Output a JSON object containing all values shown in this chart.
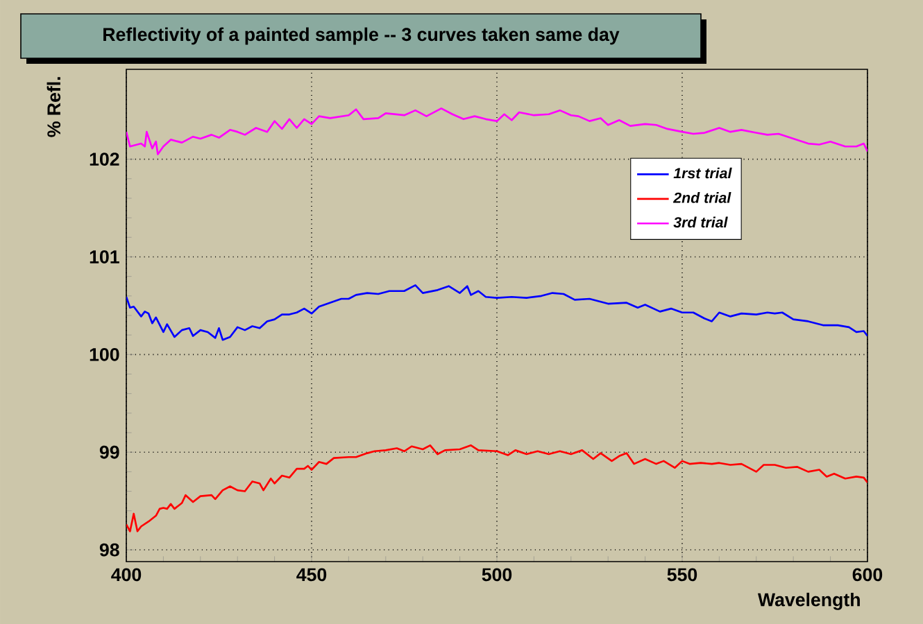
{
  "chart_data": {
    "type": "line",
    "title": "Reflectivity of a painted sample -- 3 curves taken same day",
    "xlabel": "Wavelength",
    "ylabel": "% Refl.",
    "xlim": [
      400,
      600
    ],
    "ylim": [
      97.88,
      102.92
    ],
    "xticks": [
      400,
      450,
      500,
      550,
      600
    ],
    "yticks": [
      98,
      99,
      100,
      101,
      102
    ],
    "grid": true,
    "legend": "top right",
    "marker": "none",
    "line_style": "solid",
    "series": [
      {
        "name": "*1rst trial*",
        "color": "#0000ff",
        "x": [
          400,
          401,
          402,
          404,
          405,
          406,
          407,
          408,
          410,
          411,
          413,
          415,
          417,
          418,
          420,
          422,
          424,
          425,
          426,
          428,
          430,
          432,
          434,
          436,
          438,
          440,
          442,
          444,
          446,
          448,
          450,
          452,
          455,
          458,
          460,
          462,
          465,
          468,
          471,
          475,
          478,
          480,
          484,
          487,
          490,
          492,
          493,
          495,
          497,
          500,
          504,
          508,
          512,
          515,
          518,
          521,
          525,
          530,
          535,
          538,
          540,
          544,
          547,
          550,
          553,
          556,
          558,
          560,
          563,
          566,
          570,
          573,
          575,
          577,
          580,
          584,
          588,
          592,
          595,
          597,
          599,
          600
        ],
        "values": [
          100.59,
          100.48,
          100.49,
          100.39,
          100.44,
          100.42,
          100.32,
          100.38,
          100.23,
          100.31,
          100.18,
          100.25,
          100.27,
          100.19,
          100.25,
          100.23,
          100.17,
          100.27,
          100.15,
          100.18,
          100.28,
          100.25,
          100.29,
          100.27,
          100.34,
          100.36,
          100.41,
          100.41,
          100.43,
          100.47,
          100.42,
          100.49,
          100.53,
          100.57,
          100.57,
          100.61,
          100.63,
          100.62,
          100.65,
          100.65,
          100.71,
          100.63,
          100.66,
          100.7,
          100.63,
          100.7,
          100.61,
          100.65,
          100.59,
          100.58,
          100.59,
          100.58,
          100.6,
          100.63,
          100.62,
          100.56,
          100.57,
          100.52,
          100.53,
          100.48,
          100.51,
          100.44,
          100.47,
          100.43,
          100.43,
          100.37,
          100.34,
          100.43,
          100.39,
          100.42,
          100.41,
          100.43,
          100.42,
          100.43,
          100.36,
          100.34,
          100.3,
          100.3,
          100.28,
          100.23,
          100.24,
          100.19
        ]
      },
      {
        "name": "*2nd trial*",
        "color": "#ff0000",
        "x": [
          400,
          401,
          402,
          403,
          404,
          406,
          408,
          409,
          410,
          411,
          412,
          413,
          415,
          416,
          418,
          420,
          423,
          424,
          426,
          428,
          430,
          432,
          434,
          436,
          437,
          439,
          440,
          442,
          444,
          446,
          448,
          449,
          450,
          452,
          454,
          456,
          460,
          462,
          465,
          467,
          470,
          473,
          475,
          477,
          480,
          482,
          484,
          486,
          490,
          493,
          495,
          500,
          503,
          505,
          508,
          511,
          514,
          517,
          520,
          523,
          526,
          528,
          531,
          533,
          535,
          537,
          540,
          543,
          545,
          548,
          550,
          552,
          555,
          558,
          560,
          563,
          566,
          570,
          572,
          575,
          578,
          581,
          584,
          587,
          589,
          591,
          594,
          597,
          599,
          600
        ],
        "values": [
          98.26,
          98.19,
          98.37,
          98.19,
          98.24,
          98.29,
          98.35,
          98.42,
          98.43,
          98.42,
          98.47,
          98.42,
          98.48,
          98.56,
          98.49,
          98.55,
          98.56,
          98.52,
          98.61,
          98.65,
          98.61,
          98.6,
          98.7,
          98.68,
          98.61,
          98.73,
          98.68,
          98.76,
          98.74,
          98.83,
          98.83,
          98.86,
          98.82,
          98.9,
          98.88,
          98.94,
          98.95,
          98.95,
          98.99,
          99.01,
          99.02,
          99.04,
          99.01,
          99.06,
          99.03,
          99.07,
          98.98,
          99.02,
          99.03,
          99.07,
          99.02,
          99.01,
          98.97,
          99.02,
          98.98,
          99.01,
          98.98,
          99.01,
          98.98,
          99.02,
          98.93,
          98.99,
          98.91,
          98.96,
          98.99,
          98.88,
          98.93,
          98.88,
          98.91,
          98.84,
          98.91,
          98.88,
          98.89,
          98.88,
          98.89,
          98.87,
          98.88,
          98.8,
          98.87,
          98.87,
          98.84,
          98.85,
          98.8,
          98.82,
          98.75,
          98.78,
          98.73,
          98.75,
          98.74,
          98.69
        ]
      },
      {
        "name": "*3rd trial*",
        "color": "#ff00ff",
        "x": [
          400,
          401,
          404,
          405,
          405.5,
          407,
          408,
          408.5,
          410,
          412,
          415,
          418,
          420,
          423,
          425,
          428,
          430,
          432,
          435,
          438,
          440,
          442,
          444,
          446,
          448,
          450,
          452,
          455,
          460,
          462,
          464,
          468,
          470,
          475,
          478,
          481,
          485,
          488,
          491,
          494,
          497,
          500,
          502,
          504,
          506,
          510,
          514,
          517,
          520,
          522,
          525,
          528,
          530,
          533,
          536,
          540,
          543,
          546,
          550,
          553,
          556,
          560,
          563,
          566,
          570,
          573,
          576,
          580,
          584,
          587,
          590,
          594,
          597,
          599,
          600
        ],
        "values": [
          102.28,
          102.13,
          102.16,
          102.13,
          102.28,
          102.11,
          102.18,
          102.05,
          102.13,
          102.2,
          102.17,
          102.23,
          102.21,
          102.25,
          102.22,
          102.3,
          102.28,
          102.25,
          102.32,
          102.28,
          102.39,
          102.31,
          102.41,
          102.32,
          102.41,
          102.36,
          102.44,
          102.42,
          102.45,
          102.51,
          102.41,
          102.42,
          102.47,
          102.45,
          102.5,
          102.44,
          102.52,
          102.46,
          102.41,
          102.44,
          102.41,
          102.39,
          102.46,
          102.4,
          102.48,
          102.45,
          102.46,
          102.5,
          102.45,
          102.44,
          102.39,
          102.42,
          102.35,
          102.4,
          102.34,
          102.36,
          102.35,
          102.31,
          102.28,
          102.26,
          102.27,
          102.32,
          102.28,
          102.3,
          102.27,
          102.25,
          102.26,
          102.21,
          102.16,
          102.15,
          102.18,
          102.13,
          102.13,
          102.16,
          102.08
        ]
      }
    ]
  }
}
